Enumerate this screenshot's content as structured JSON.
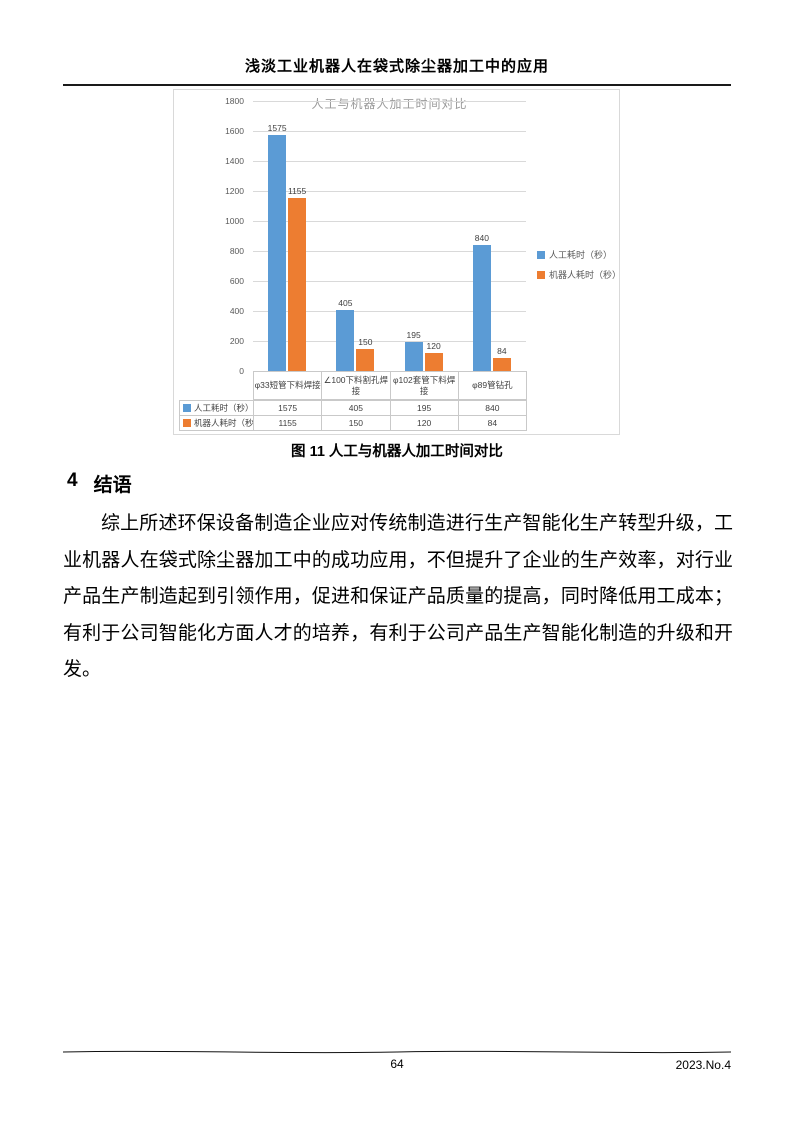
{
  "page": {
    "header_title": "浅淡工业机器人在袋式除尘器加工中的应用",
    "figure_caption": "图 11  人工与机器人加工时间对比",
    "section_number": "4",
    "section_title": "结语",
    "paragraph": "综上所述环保设备制造企业应对传统制造进行生产智能化生产转型升级，工业机器人在袋式除尘器加工中的成功应用，不但提升了企业的生产效率，对行业产品生产制造起到引领作用，促进和保证产品质量的提高，同时降低用工成本；有利于公司智能化方面人才的培养，有利于公司产品生产智能化制造的升级和开发。",
    "footer_page_number": "64",
    "footer_issue": "2023.No.4"
  },
  "chart_data": {
    "type": "bar",
    "title": "人工与机器人加工时间对比",
    "categories": [
      "φ33短管下料焊接",
      "∠100下料割孔焊接",
      "φ102套管下料焊接",
      "φ89管钻孔"
    ],
    "series": [
      {
        "name": "人工耗时（秒）",
        "color": "#5B9BD5",
        "values": [
          1575,
          405,
          195,
          840
        ]
      },
      {
        "name": "机器人耗时（秒）",
        "color": "#ED7D31",
        "values": [
          1155,
          150,
          120,
          84
        ]
      }
    ],
    "ylim": [
      0,
      1800
    ],
    "ytick_step": 200,
    "grid": true,
    "legend_position": "right",
    "data_table_shown": true
  }
}
